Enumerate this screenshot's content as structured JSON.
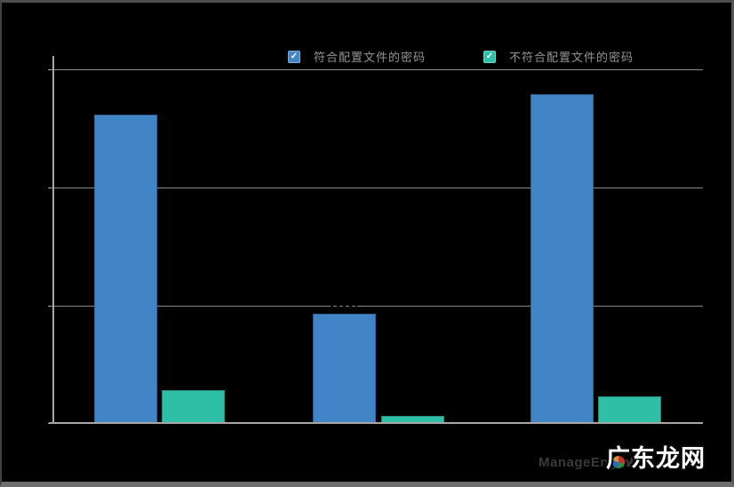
{
  "window": {
    "background": "#000000"
  },
  "legend": {
    "check_glyph": "✓",
    "items": [
      {
        "label": "符合配置文件的密码",
        "color": "#4185c7",
        "checked": true
      },
      {
        "label": "不符合配置文件的密码",
        "color": "#2fbfa6",
        "checked": true
      }
    ]
  },
  "chart_data": {
    "type": "bar",
    "title": "",
    "categories": [
      "",
      "",
      ""
    ],
    "series": [
      {
        "name": "符合配置文件的密码",
        "color": "#4185c7",
        "values": [
          87,
          31,
          92.8
        ]
      },
      {
        "name": "不符合配置文件的密码",
        "color": "#2fbfa6",
        "values": [
          9.5,
          2.3,
          7.8
        ]
      }
    ],
    "xlabel": "",
    "ylabel": "",
    "ylim": [
      0,
      100
    ],
    "yticks_labeled": false,
    "gridlines_y": [
      0,
      33.3,
      66.7,
      100
    ],
    "grid": true,
    "legend_position": "top-center"
  },
  "watermark": {
    "brand": "ManageEngine",
    "fragment_a": "A",
    "fragment_s": "s",
    "color": "#3a3a3a"
  },
  "overlay": {
    "text": "广东龙网",
    "color": "#ffffff"
  },
  "colors": {
    "axis": "#a6a6a6",
    "gridline": "#8a8a8a",
    "legend_text": "#949494",
    "frame_border": "#5a5a5a"
  }
}
